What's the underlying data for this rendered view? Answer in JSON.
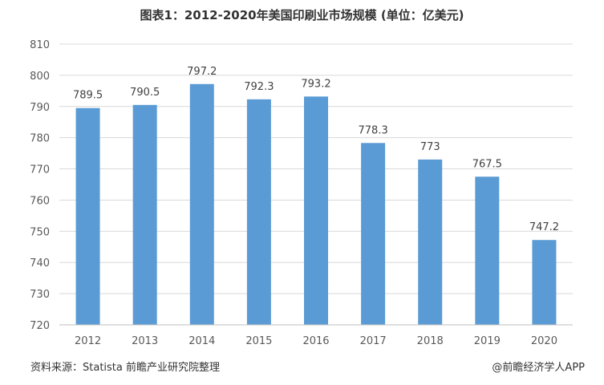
{
  "header": {
    "title": "图表1：2012-2020年美国印刷业市场规模 (单位：亿美元)"
  },
  "footer": {
    "source": "资料来源：Statista 前瞻产业研究院整理",
    "credit": "@前瞻经济学人APP"
  },
  "colors": {
    "bar": "#5b9bd5",
    "grid": "#d9d9d9",
    "axis": "#bfbfbf",
    "text": "#595959"
  },
  "chart_data": {
    "type": "bar",
    "title": "图表1：2012-2020年美国印刷业市场规模 (单位：亿美元)",
    "xlabel": "",
    "ylabel": "",
    "categories": [
      "2012",
      "2013",
      "2014",
      "2015",
      "2016",
      "2017",
      "2018",
      "2019",
      "2020"
    ],
    "values": [
      789.5,
      790.5,
      797.2,
      792.3,
      793.2,
      778.3,
      773,
      767.5,
      747.2
    ],
    "value_labels": [
      "789.5",
      "790.5",
      "797.2",
      "792.3",
      "793.2",
      "778.3",
      "773",
      "767.5",
      "747.2"
    ],
    "ylim": [
      720,
      810
    ],
    "yticks": [
      720,
      730,
      740,
      750,
      760,
      770,
      780,
      790,
      800,
      810
    ],
    "grid": true,
    "legend": "none"
  }
}
